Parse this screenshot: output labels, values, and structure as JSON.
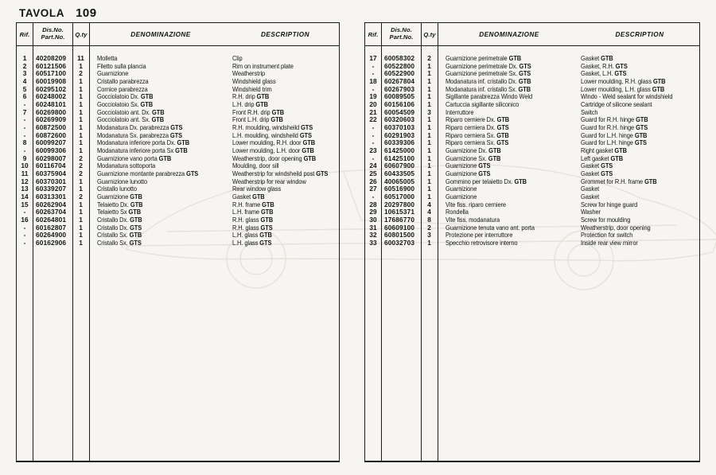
{
  "page": {
    "title_label": "TAVOLA",
    "title_number": "109"
  },
  "table_headers": {
    "rif": "Rif.",
    "dis_no": "Dis.No.",
    "part_no": "Part.No.",
    "qty": "Q.ty",
    "denominazione": "DENOMINAZIONE",
    "description": "DESCRIPTION"
  },
  "watermark": {
    "name": "car-outline-watermark",
    "color": "#e4e2da"
  },
  "left_table": {
    "rows": [
      {
        "rif": "1",
        "part": "40208209",
        "qty": "11",
        "den": "Molletta",
        "desc": "Clip"
      },
      {
        "rif": "2",
        "part": "60121506",
        "qty": "1",
        "den": "Filetto sulla plancia",
        "desc": "Rim on instrument plate"
      },
      {
        "rif": "3",
        "part": "60517100",
        "qty": "2",
        "den": "Guarnizione",
        "desc": "Weatherstrip"
      },
      {
        "rif": "4",
        "part": "60019908",
        "qty": "1",
        "den": "Cristallo parabrezza",
        "desc": "Windshield glass"
      },
      {
        "rif": "5",
        "part": "60295102",
        "qty": "1",
        "den": "Cornice parabrezza",
        "desc": "Windshield trim"
      },
      {
        "rif": "6",
        "part": "60248002",
        "qty": "1",
        "den": "Gocciolatoio Dx. GTB",
        "desc": "R.H. drip GTB"
      },
      {
        "rif": "-",
        "part": "60248101",
        "qty": "1",
        "den": "Gocciolatoio Sx. GTB",
        "desc": "L.H. drip GTB"
      },
      {
        "rif": "7",
        "part": "60269800",
        "qty": "1",
        "den": "Gocciolatoio ant. Dx. GTB",
        "desc": "Front R.H. drip GTB"
      },
      {
        "rif": "-",
        "part": "60269909",
        "qty": "1",
        "den": "Gocciolatoio ant. Sx. GTB",
        "desc": "Front L.H. drip GTB"
      },
      {
        "rif": "-",
        "part": "60872500",
        "qty": "1",
        "den": "Modanatura Dx. parabrezza GTS",
        "desc": "R.H. moulding, windsheild GTS"
      },
      {
        "rif": "-",
        "part": "60872600",
        "qty": "1",
        "den": "Modanatura Sx. parabrezza GTS",
        "desc": "L.H. moulding, windsheild GTS"
      },
      {
        "rif": "8",
        "part": "60099207",
        "qty": "1",
        "den": "Modanatura inferiore porta Dx. GTB",
        "desc": "Lower moulding, R.H. door GTB"
      },
      {
        "rif": "-",
        "part": "60099306",
        "qty": "1",
        "den": "Modanatura inferiore porta Sx GTB",
        "desc": "Lower moulding, L.H. door GTB"
      },
      {
        "rif": "9",
        "part": "60298007",
        "qty": "2",
        "den": "Guarnizione vano porta GTB",
        "desc": "Weatherstrip, door opening GTB"
      },
      {
        "rif": "10",
        "part": "60116704",
        "qty": "2",
        "den": "Modanatura sottoporta",
        "desc": "Moulding, door sill"
      },
      {
        "rif": "11",
        "part": "60375904",
        "qty": "2",
        "den": "Guarnizione montante parabrezza GTS",
        "desc": "Weatherstrip for windsheild post GTS"
      },
      {
        "rif": "12",
        "part": "60370301",
        "qty": "1",
        "den": "Guarnizione lunotto",
        "desc": "Weatherstrip for rear window"
      },
      {
        "rif": "13",
        "part": "60339207",
        "qty": "1",
        "den": "Cristallo lunotto",
        "desc": "Rear window glass"
      },
      {
        "rif": "14",
        "part": "60313301",
        "qty": "2",
        "den": "Guarnizione GTB",
        "desc": "Gasket GTB"
      },
      {
        "rif": "15",
        "part": "60262904",
        "qty": "1",
        "den": "Telaietto Dx. GTB",
        "desc": "R.H. frame GTB"
      },
      {
        "rif": "-",
        "part": "60263704",
        "qty": "1",
        "den": "Telaietto Sx GTB",
        "desc": "L.H. frame GTB"
      },
      {
        "rif": "16",
        "part": "60264801",
        "qty": "1",
        "den": "Cristallo Dx. GTB",
        "desc": "R.H. glass GTB"
      },
      {
        "rif": "-",
        "part": "60162807",
        "qty": "1",
        "den": "Cristallo Dx. GTS",
        "desc": "R.H. glass GTS"
      },
      {
        "rif": "-",
        "part": "60264900",
        "qty": "1",
        "den": "Cristallo Sx. GTB",
        "desc": "L.H. glass GTB"
      },
      {
        "rif": "-",
        "part": "60162906",
        "qty": "1",
        "den": "Cristallo Sx. GTS",
        "desc": "L.H. glass GTS"
      }
    ]
  },
  "right_table": {
    "rows": [
      {
        "rif": "17",
        "part": "60058302",
        "qty": "2",
        "den": "Guarnizione perimetrale GTB",
        "desc": "Gasket GTB"
      },
      {
        "rif": "-",
        "part": "60522800",
        "qty": "1",
        "den": "Guarnizione perimetrale Dx. GTS",
        "desc": "Gasket, R.H. GTS"
      },
      {
        "rif": "-",
        "part": "60522900",
        "qty": "1",
        "den": "Guarnizione perimetrale Sx. GTS",
        "desc": "Gasket, L.H. GTS"
      },
      {
        "rif": "18",
        "part": "60267804",
        "qty": "1",
        "den": "Modanatura inf. cristallo Dx. GTB",
        "desc": "Lower moulding, R.H. glass GTB"
      },
      {
        "rif": "-",
        "part": "60267903",
        "qty": "1",
        "den": "Modanatura inf. cristallo Sx. GTB",
        "desc": "Lower moulding, L.H. glass GTB"
      },
      {
        "rif": "19",
        "part": "60089505",
        "qty": "1",
        "den": "Sigillante parabrezza Windo Weld",
        "desc": "Windo - Weld sealant for windshield"
      },
      {
        "rif": "20",
        "part": "60156106",
        "qty": "1",
        "den": "Cartuccia sigillante siliconico",
        "desc": "Cartridge of silicone sealant"
      },
      {
        "rif": "21",
        "part": "60054509",
        "qty": "3",
        "den": "Interruttore",
        "desc": "Switch"
      },
      {
        "rif": "22",
        "part": "60320603",
        "qty": "1",
        "den": "Riparo cerniere Dx. GTB",
        "desc": "Guard for R.H. hinge GTB"
      },
      {
        "rif": "-",
        "part": "60370103",
        "qty": "1",
        "den": "Riparo cerniera Dx. GTS",
        "desc": "Guard for R.H. hinge GTS"
      },
      {
        "rif": "-",
        "part": "60291903",
        "qty": "1",
        "den": "Riparo cerniera Sx. GTB",
        "desc": "Guard for L.H. hinge GTB"
      },
      {
        "rif": "-",
        "part": "60339306",
        "qty": "1",
        "den": "Riparo cerniera Sx. GTS",
        "desc": "Guard for L.H. hinge GTS"
      },
      {
        "rif": "23",
        "part": "61425000",
        "qty": "1",
        "den": "Guarnizione Dx. GTB",
        "desc": "Right gasket GTB"
      },
      {
        "rif": "-",
        "part": "61425100",
        "qty": "1",
        "den": "Guarnizione Sx. GTB",
        "desc": "Left gasket GTB"
      },
      {
        "rif": "24",
        "part": "60607900",
        "qty": "1",
        "den": "Guarnizione GTS",
        "desc": "Gasket GTS"
      },
      {
        "rif": "25",
        "part": "60433505",
        "qty": "1",
        "den": "Guarnizione GTS",
        "desc": "Gasket GTS"
      },
      {
        "rif": "26",
        "part": "40065005",
        "qty": "1",
        "den": "Gommino per telaietto Dx. GTB",
        "desc": "Grommet for R.H. frame GTB"
      },
      {
        "rif": "27",
        "part": "60516900",
        "qty": "1",
        "den": "Guarnizione",
        "desc": "Gasket"
      },
      {
        "rif": "-",
        "part": "60517000",
        "qty": "1",
        "den": "Guarnizione",
        "desc": "Gasket"
      },
      {
        "rif": "28",
        "part": "20297800",
        "qty": "4",
        "den": "Vite fiss. riparo cerniere",
        "desc": "Screw for hinge guard"
      },
      {
        "rif": "29",
        "part": "10615371",
        "qty": "4",
        "den": "Rondella",
        "desc": "Washer"
      },
      {
        "rif": "30",
        "part": "17686770",
        "qty": "8",
        "den": "Vite fiss. modanatura",
        "desc": "Screw for moulding"
      },
      {
        "rif": "31",
        "part": "60609100",
        "qty": "2",
        "den": "Guarnizione tenuta vano ant. porta",
        "desc": "Weatherstrip, door opening"
      },
      {
        "rif": "32",
        "part": "60801500",
        "qty": "3",
        "den": "Protezione per interruttore",
        "desc": "Protection for switch"
      },
      {
        "rif": "33",
        "part": "60032703",
        "qty": "1",
        "den": "Specchio retrovisore interno",
        "desc": "Inside rear view mirror"
      }
    ]
  }
}
